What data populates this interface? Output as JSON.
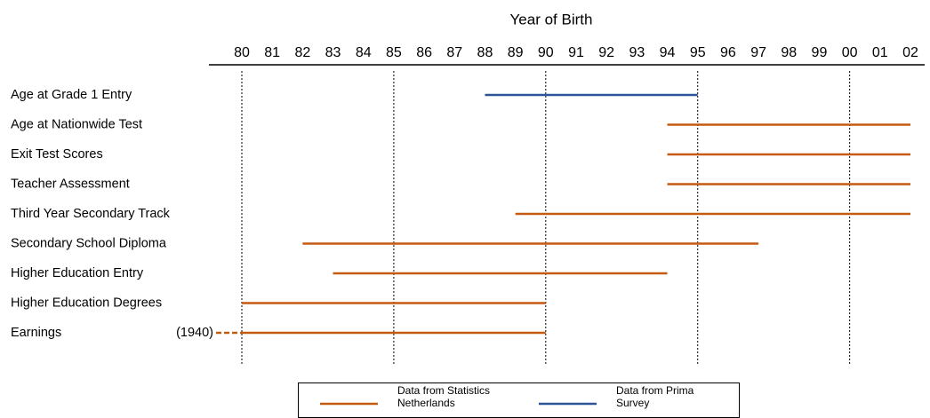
{
  "chart_data": {
    "type": "range",
    "title": "Year of Birth",
    "xlim": [
      1980,
      2002
    ],
    "xticks": [
      {
        "value": 1980,
        "label": "80"
      },
      {
        "value": 1981,
        "label": "81"
      },
      {
        "value": 1982,
        "label": "82"
      },
      {
        "value": 1983,
        "label": "83"
      },
      {
        "value": 1984,
        "label": "84"
      },
      {
        "value": 1985,
        "label": "85"
      },
      {
        "value": 1986,
        "label": "86"
      },
      {
        "value": 1987,
        "label": "87"
      },
      {
        "value": 1988,
        "label": "88"
      },
      {
        "value": 1989,
        "label": "89"
      },
      {
        "value": 1990,
        "label": "90"
      },
      {
        "value": 1991,
        "label": "91"
      },
      {
        "value": 1992,
        "label": "92"
      },
      {
        "value": 1993,
        "label": "93"
      },
      {
        "value": 1994,
        "label": "94"
      },
      {
        "value": 1995,
        "label": "95"
      },
      {
        "value": 1996,
        "label": "96"
      },
      {
        "value": 1997,
        "label": "97"
      },
      {
        "value": 1998,
        "label": "98"
      },
      {
        "value": 1999,
        "label": "99"
      },
      {
        "value": 2000,
        "label": "00"
      },
      {
        "value": 2001,
        "label": "01"
      },
      {
        "value": 2002,
        "label": "02"
      }
    ],
    "xgrid": [
      1980,
      1985,
      1990,
      1995,
      2000
    ],
    "categories": [
      "Age at Grade 1 Entry",
      "Age at Nationwide Test",
      "Exit Test Scores",
      "Teacher Assessment",
      "Third Year Secondary Track",
      "Secondary School Diploma",
      "Higher Education Entry",
      "Higher Education Degrees",
      "Earnings"
    ],
    "series": [
      {
        "name": "Data from Statistics Netherlands",
        "color": "#c55a11",
        "values": [
          null,
          [
            1994,
            2002
          ],
          [
            1994,
            2002
          ],
          [
            1994,
            2002
          ],
          [
            1989,
            2002
          ],
          [
            1982,
            1997
          ],
          [
            1983,
            1994
          ],
          [
            1980,
            1990
          ],
          [
            1940,
            1990
          ]
        ],
        "value_labels": [
          null,
          null,
          null,
          null,
          null,
          null,
          null,
          null,
          "(1940)"
        ]
      },
      {
        "name": "Data from Prima Survey",
        "color": "#2e5597",
        "values": [
          [
            1988,
            1995
          ],
          null,
          null,
          null,
          null,
          null,
          null,
          null,
          null
        ]
      }
    ]
  }
}
